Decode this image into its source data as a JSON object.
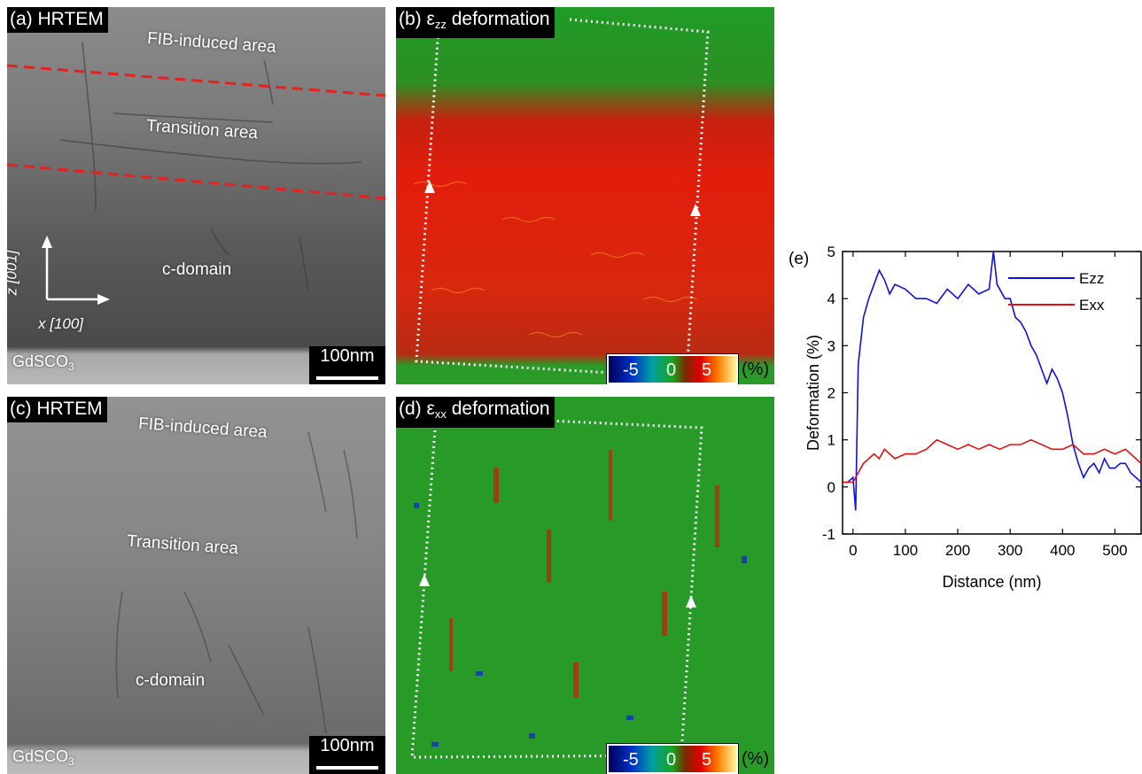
{
  "panel_a": {
    "tag": "(a) HRTEM",
    "fib_label": "FIB-induced area",
    "transition_label": "Transition area",
    "domain_label": "c-domain",
    "substrate": "GdSCO",
    "substrate_sub": "3",
    "axis_z": "z [001]",
    "axis_x": "x [100]",
    "scalebar": "100nm"
  },
  "panel_b": {
    "tag_prefix": "(b) ε",
    "tag_sub": "zz",
    "tag_suffix": " deformation",
    "colorbar": [
      "-5",
      "0",
      "5"
    ],
    "unit": "(%)"
  },
  "panel_c": {
    "tag": "(c) HRTEM",
    "fib_label": "FIB-induced area",
    "transition_label": "Transition area",
    "domain_label": "c-domain",
    "substrate": "GdSCO",
    "substrate_sub": "3",
    "scalebar": "100nm"
  },
  "panel_d": {
    "tag_prefix": "(d) ε",
    "tag_sub": "xx",
    "tag_suffix": " deformation",
    "colorbar": [
      "-5",
      "0",
      "5"
    ],
    "unit": "(%)"
  },
  "panel_e": {
    "tag": "(e)"
  },
  "chart_data": {
    "type": "line",
    "title": "",
    "xlabel": "Distance (nm)",
    "ylabel": "Deformation (%)",
    "xlim": [
      -20,
      550
    ],
    "ylim": [
      -1,
      5
    ],
    "xticks": [
      0,
      100,
      200,
      300,
      400,
      500
    ],
    "yticks": [
      -1,
      0,
      1,
      2,
      3,
      4,
      5
    ],
    "legend_position": "top-right",
    "series": [
      {
        "name": "Ezz",
        "color": "#1010e0",
        "x": [
          -20,
          -10,
          0,
          5,
          10,
          20,
          30,
          40,
          50,
          60,
          70,
          80,
          100,
          120,
          140,
          160,
          180,
          200,
          220,
          240,
          260,
          268,
          275,
          290,
          300,
          310,
          320,
          330,
          340,
          350,
          360,
          370,
          380,
          390,
          400,
          410,
          420,
          430,
          440,
          450,
          460,
          470,
          480,
          490,
          500,
          510,
          520,
          530,
          540,
          550
        ],
        "y": [
          0.1,
          0.1,
          0.2,
          -0.5,
          2.6,
          3.6,
          4.0,
          4.3,
          4.6,
          4.4,
          4.1,
          4.3,
          4.2,
          4.0,
          4.0,
          3.9,
          4.2,
          4.0,
          4.3,
          4.1,
          4.2,
          5.0,
          4.3,
          4.0,
          4.0,
          3.6,
          3.5,
          3.3,
          3.0,
          2.8,
          2.5,
          2.2,
          2.5,
          2.3,
          2.0,
          1.5,
          0.9,
          0.5,
          0.2,
          0.4,
          0.5,
          0.3,
          0.6,
          0.4,
          0.4,
          0.5,
          0.5,
          0.3,
          0.2,
          0.1
        ]
      },
      {
        "name": "Exx",
        "color": "#e01010",
        "x": [
          -20,
          -10,
          0,
          10,
          20,
          30,
          40,
          50,
          60,
          70,
          80,
          100,
          120,
          140,
          160,
          180,
          200,
          220,
          240,
          260,
          280,
          300,
          320,
          340,
          360,
          380,
          400,
          420,
          440,
          460,
          480,
          500,
          520,
          540,
          550
        ],
        "y": [
          0.1,
          0.1,
          0.1,
          0.3,
          0.5,
          0.6,
          0.7,
          0.6,
          0.8,
          0.7,
          0.6,
          0.7,
          0.7,
          0.8,
          1.0,
          0.9,
          0.8,
          0.9,
          0.8,
          0.9,
          0.8,
          0.9,
          0.9,
          1.0,
          0.9,
          0.8,
          0.8,
          0.9,
          0.7,
          0.7,
          0.8,
          0.7,
          0.8,
          0.6,
          0.5
        ]
      }
    ]
  }
}
